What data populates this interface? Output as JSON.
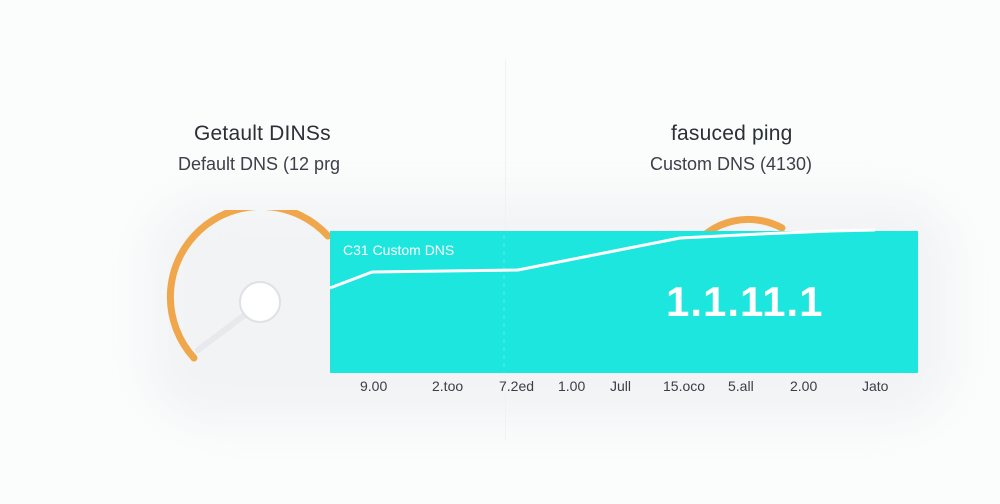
{
  "left": {
    "title": "Getault DINSs",
    "subtitle": "Default DNS (12 prg"
  },
  "right": {
    "title": "fasuced ping",
    "subtitle": "Custom DNS (4130)"
  },
  "panel": {
    "label": "C31 Custom DNS",
    "value": "1.1.11.1",
    "color": "#1de6de"
  },
  "gauge": {
    "color": "#f0a64a"
  },
  "axis_ticks": [
    "9.00",
    "2.too",
    "7.2ed",
    "1.00",
    "Jull",
    "15.oco",
    "5.all",
    "2.00",
    "Jato"
  ]
}
